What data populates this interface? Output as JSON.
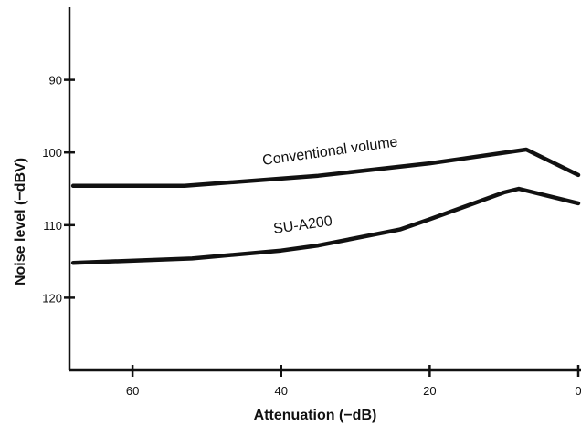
{
  "chart_data": {
    "type": "line",
    "title": "",
    "xlabel": "Attenuation (−dB)",
    "ylabel": "Noise level (−dBV)",
    "xlim": [
      68.5,
      0
    ],
    "ylim": [
      80,
      130
    ],
    "x_ticks": [
      60,
      40,
      20,
      0
    ],
    "x_tick_labels": [
      "60",
      "40",
      "20",
      "0"
    ],
    "y_ticks": [
      90,
      100,
      110,
      120
    ],
    "y_tick_labels": [
      "90",
      "100",
      "110",
      "120"
    ],
    "grid": false,
    "series": [
      {
        "name": "Conventional volume",
        "color": "#111111",
        "x": [
          68,
          53,
          35,
          20,
          7,
          0
        ],
        "y": [
          104.6,
          104.6,
          103.2,
          101.5,
          99.6,
          103.1
        ]
      },
      {
        "name": "SU-A200",
        "color": "#111111",
        "x": [
          68,
          52,
          40,
          35,
          24,
          20,
          10,
          8,
          0
        ],
        "y": [
          115.2,
          114.6,
          113.5,
          112.8,
          110.6,
          109.2,
          105.5,
          105.0,
          107.0
        ]
      }
    ]
  }
}
